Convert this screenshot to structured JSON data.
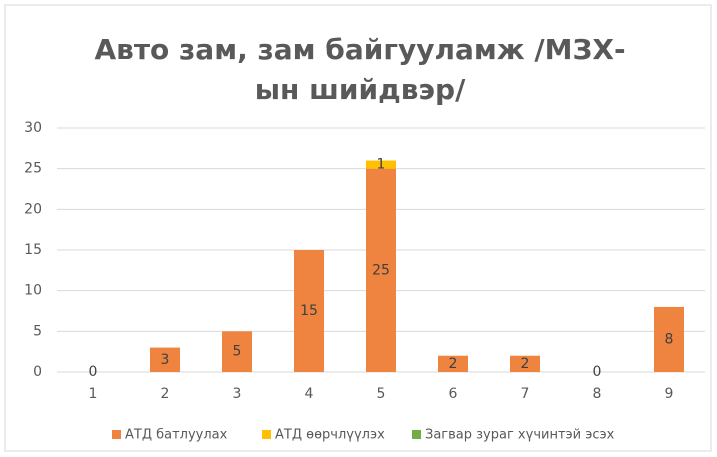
{
  "chart_data": {
    "type": "stacked_bar",
    "title": "Авто зам, зам байгууламж /МЗХ-ын шийдвэр/",
    "categories": [
      "1",
      "2",
      "3",
      "4",
      "5",
      "6",
      "7",
      "8",
      "9"
    ],
    "series": [
      {
        "name": "АТД батлуулах",
        "color": "#ef8440",
        "labels": "all",
        "values": [
          0,
          3,
          5,
          15,
          25,
          2,
          2,
          0,
          8
        ]
      },
      {
        "name": "АТД өөрчлүүлэх",
        "color": "#ffc000",
        "labels": "nonzero",
        "values": [
          0,
          0,
          0,
          0,
          1,
          0,
          0,
          0,
          0
        ]
      },
      {
        "name": "Загвар зураг хүчинтэй эсэх",
        "color": "#70ad47",
        "labels": "none",
        "values": [
          0,
          0,
          0,
          0,
          0,
          0,
          0,
          0,
          0
        ]
      }
    ],
    "ylim": [
      0,
      30
    ],
    "yticks": [
      0,
      5,
      10,
      15,
      20,
      25,
      30
    ],
    "grid": true,
    "legend": "bottom"
  }
}
